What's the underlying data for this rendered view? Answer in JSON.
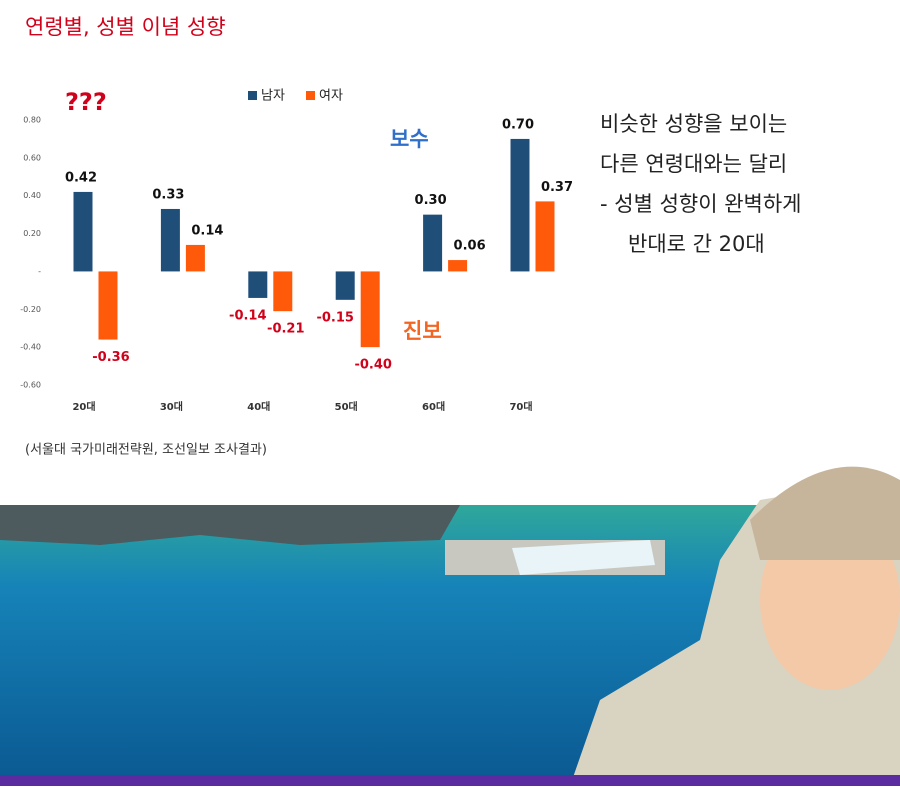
{
  "chart_data": {
    "type": "bar",
    "title": "연령별, 성별 이념 성향",
    "categories": [
      "20대",
      "30대",
      "40대",
      "50대",
      "60대",
      "70대"
    ],
    "series": [
      {
        "name": "남자",
        "color": "#1f4e79",
        "values": [
          0.42,
          0.33,
          -0.14,
          -0.15,
          0.3,
          0.7
        ],
        "value_labels": [
          "0.42",
          "0.33",
          "-0.14",
          "-0.15",
          "0.30",
          "0.70"
        ]
      },
      {
        "name": "여자",
        "color": "#ff5a0a",
        "values": [
          -0.36,
          0.14,
          -0.21,
          -0.4,
          0.06,
          0.37
        ],
        "value_labels": [
          "-0.36",
          "0.14",
          "-0.21",
          "-0.40",
          "0.06",
          "0.37"
        ]
      }
    ],
    "ylim": [
      -0.6,
      0.8
    ],
    "yticks": [
      {
        "value": 0.8,
        "label": "0.80"
      },
      {
        "value": 0.6,
        "label": "0.60"
      },
      {
        "value": 0.4,
        "label": "0.40"
      },
      {
        "value": 0.2,
        "label": "0.20"
      },
      {
        "value": 0,
        "label": "-"
      },
      {
        "value": -0.2,
        "label": "-0.20"
      },
      {
        "value": -0.4,
        "label": "-0.40"
      },
      {
        "value": -0.6,
        "label": "-0.60"
      }
    ],
    "annotations": [
      "???",
      "보수",
      "진보"
    ],
    "source": "(서울대 국가미래전략원, 조선일보 조사결과)"
  },
  "side_text": [
    "비슷한 성향을 보이는",
    "다른 연령대와는 달리",
    "-   성별 성향이 완벽하게",
    "반대로 간 20대"
  ]
}
